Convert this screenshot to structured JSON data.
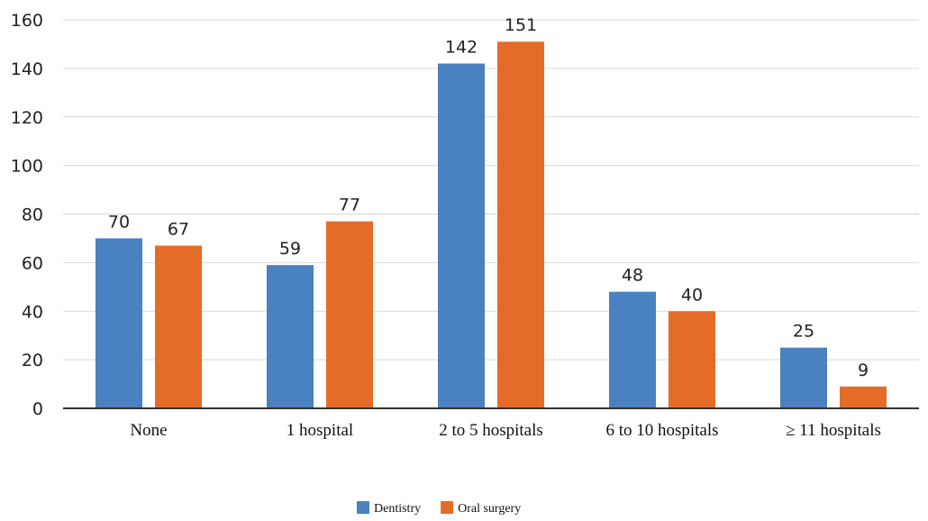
{
  "chart_data": {
    "type": "bar",
    "title": "",
    "xlabel": "",
    "ylabel": "",
    "categories": [
      "None",
      "1 hospital",
      "2 to 5 hospitals",
      "6 to 10 hospitals",
      "≥ 11 hospitals"
    ],
    "series": [
      {
        "name": "Dentistry",
        "color": "#4A81C0",
        "values": [
          70,
          59,
          142,
          48,
          25
        ]
      },
      {
        "name": "Oral surgery",
        "color": "#E46C28",
        "values": [
          67,
          77,
          151,
          40,
          9
        ]
      }
    ],
    "ylim": [
      0,
      160
    ],
    "yticks": [
      0,
      20,
      40,
      60,
      80,
      100,
      120,
      140,
      160
    ],
    "grid": true,
    "legend": "bottom-center",
    "data_labels": true
  }
}
